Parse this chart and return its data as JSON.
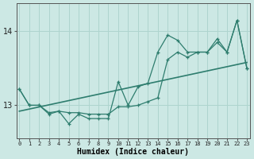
{
  "x": [
    0,
    1,
    2,
    3,
    4,
    5,
    6,
    7,
    8,
    9,
    10,
    11,
    12,
    13,
    14,
    15,
    16,
    17,
    18,
    19,
    20,
    21,
    22,
    23
  ],
  "line_jagged": [
    13.22,
    13.0,
    13.0,
    12.88,
    12.92,
    12.75,
    12.88,
    12.82,
    12.82,
    12.82,
    13.32,
    13.0,
    13.25,
    13.3,
    13.72,
    13.95,
    13.88,
    13.72,
    13.72,
    13.72,
    13.9,
    13.72,
    14.15,
    13.5
  ],
  "line_smooth": [
    13.22,
    13.0,
    13.0,
    12.9,
    12.92,
    12.9,
    12.9,
    12.88,
    12.88,
    12.88,
    12.98,
    12.98,
    13.0,
    13.05,
    13.1,
    13.62,
    13.72,
    13.65,
    13.72,
    13.72,
    13.85,
    13.72,
    14.15,
    13.5
  ],
  "trend_x": [
    0,
    23
  ],
  "trend_y": [
    12.92,
    13.58
  ],
  "line_color": "#2e7d6e",
  "bg_color": "#cce8e4",
  "grid_color": "#aed4ce",
  "xlabel": "Humidex (Indice chaleur)",
  "yticks": [
    13,
    14
  ],
  "xlim": [
    -0.3,
    23.3
  ],
  "ylim": [
    12.55,
    14.38
  ]
}
